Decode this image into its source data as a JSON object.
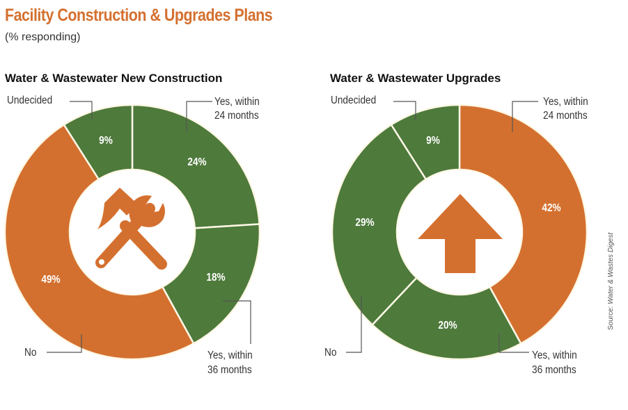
{
  "header": {
    "title": "Facility Construction & Upgrades Plans",
    "subtitle": "(% responding)"
  },
  "source": {
    "prefix": "Source: ",
    "name": "Water & Wastes Digest"
  },
  "colors": {
    "orange": "#D4702F",
    "green": "#4E7A3C",
    "divider": "#FFF8E6"
  },
  "chart_data": [
    {
      "type": "pie",
      "variant": "donut",
      "title": "Water & Wastewater New Construction",
      "center_icon": "hammer-wrench-icon",
      "categories": [
        "Yes, within 24 months",
        "Yes, within 36 months",
        "No",
        "Undecided"
      ],
      "values": [
        24,
        18,
        49,
        9
      ],
      "unit": "%",
      "slice_colors": [
        "#4E7A3C",
        "#4E7A3C",
        "#D4702F",
        "#4E7A3C"
      ],
      "start_angle_deg": 0,
      "direction": "clockwise"
    },
    {
      "type": "pie",
      "variant": "donut",
      "title": "Water & Wastewater Upgrades",
      "center_icon": "up-arrow-icon",
      "categories": [
        "Yes, within 24 months",
        "Yes, within 36 months",
        "No",
        "Undecided"
      ],
      "values": [
        42,
        20,
        29,
        9
      ],
      "unit": "%",
      "slice_colors": [
        "#D4702F",
        "#4E7A3C",
        "#4E7A3C",
        "#4E7A3C"
      ],
      "start_angle_deg": 0,
      "direction": "clockwise"
    }
  ],
  "labels": {
    "left": {
      "undecided": "Undecided",
      "yes24_l1": "Yes, within",
      "yes24_l2": "24 months",
      "yes36_l1": "Yes, within",
      "yes36_l2": "36 months",
      "no": "No"
    },
    "right": {
      "undecided": "Undecided",
      "yes24_l1": "Yes, within",
      "yes24_l2": "24 months",
      "yes36_l1": "Yes, within",
      "yes36_l2": "36 months",
      "no": "No"
    }
  }
}
